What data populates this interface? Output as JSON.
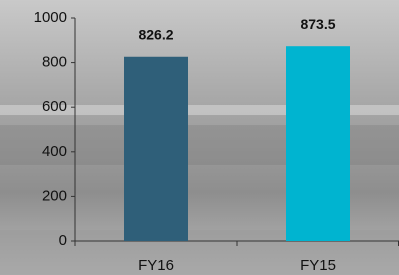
{
  "chart_data": {
    "type": "bar",
    "categories": [
      "FY16",
      "FY15"
    ],
    "values": [
      826.2,
      873.5
    ],
    "colors": [
      "#2f5f79",
      "#00b4d0"
    ],
    "ylim": [
      0,
      1000
    ],
    "yticks": [
      0,
      200,
      400,
      600,
      800,
      1000
    ],
    "grid": false
  }
}
